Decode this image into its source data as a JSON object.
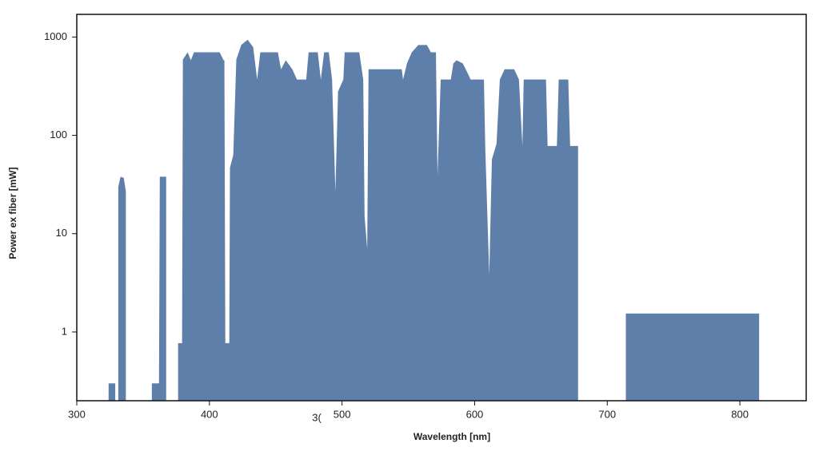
{
  "chart_data": {
    "type": "area",
    "xlabel": "Wavelength [nm]",
    "ylabel": "Power ex fiber [mW]",
    "annotation": "3(",
    "x": [
      324,
      329,
      null,
      331.3,
      333,
      335.4,
      337,
      null,
      356.6,
      362,
      362.6,
      367.4,
      null,
      376.4,
      379.4,
      380,
      383.6,
      386,
      388.4,
      407.7,
      410.7,
      411.3,
      412,
      415,
      415.5,
      418,
      420.3,
      424,
      428.8,
      433,
      436,
      438.4,
      451.6,
      454,
      457.6,
      462.5,
      466,
      473,
      474.8,
      481.7,
      484,
      486.5,
      490,
      492.5,
      495,
      497,
      501,
      502,
      513,
      516,
      517,
      519,
      520,
      545,
      546,
      549,
      552.6,
      557.5,
      564,
      567,
      570.8,
      572,
      574.4,
      582,
      584,
      586.4,
      591,
      594,
      597,
      607,
      608,
      611,
      613,
      616.5,
      619,
      622.6,
      629.8,
      633.4,
      636,
      637,
      653.8,
      655,
      662,
      663.4,
      670.6,
      672,
      678,
      null,
      714,
      814.5
    ],
    "series": [
      {
        "name": "Power",
        "color": "#5f7fab",
        "values": [
          0.3,
          0.3,
          null,
          30,
          38,
          37,
          27,
          null,
          0.3,
          0.3,
          38,
          38,
          null,
          0.77,
          0.77,
          590,
          700,
          580,
          700,
          700,
          580,
          580,
          0.77,
          0.77,
          47,
          63,
          590,
          830,
          940,
          790,
          370,
          700,
          700,
          470,
          580,
          470,
          370,
          370,
          700,
          700,
          370,
          700,
          700,
          370,
          27,
          280,
          370,
          700,
          700,
          370,
          15,
          7,
          470,
          470,
          370,
          540,
          700,
          830,
          830,
          700,
          700,
          39,
          370,
          370,
          540,
          580,
          540,
          450,
          370,
          370,
          75,
          3.8,
          57,
          82,
          370,
          470,
          470,
          370,
          78,
          370,
          370,
          78,
          78,
          370,
          370,
          78,
          78,
          null,
          1.54,
          1.54
        ]
      }
    ],
    "xlim": [
      300,
      850
    ],
    "xticks": [
      300,
      400,
      500,
      600,
      700,
      800
    ],
    "ylim": [
      0.2,
      1700
    ],
    "yticks": [
      1,
      10,
      100,
      1000
    ],
    "log_y": true,
    "grid": false
  }
}
